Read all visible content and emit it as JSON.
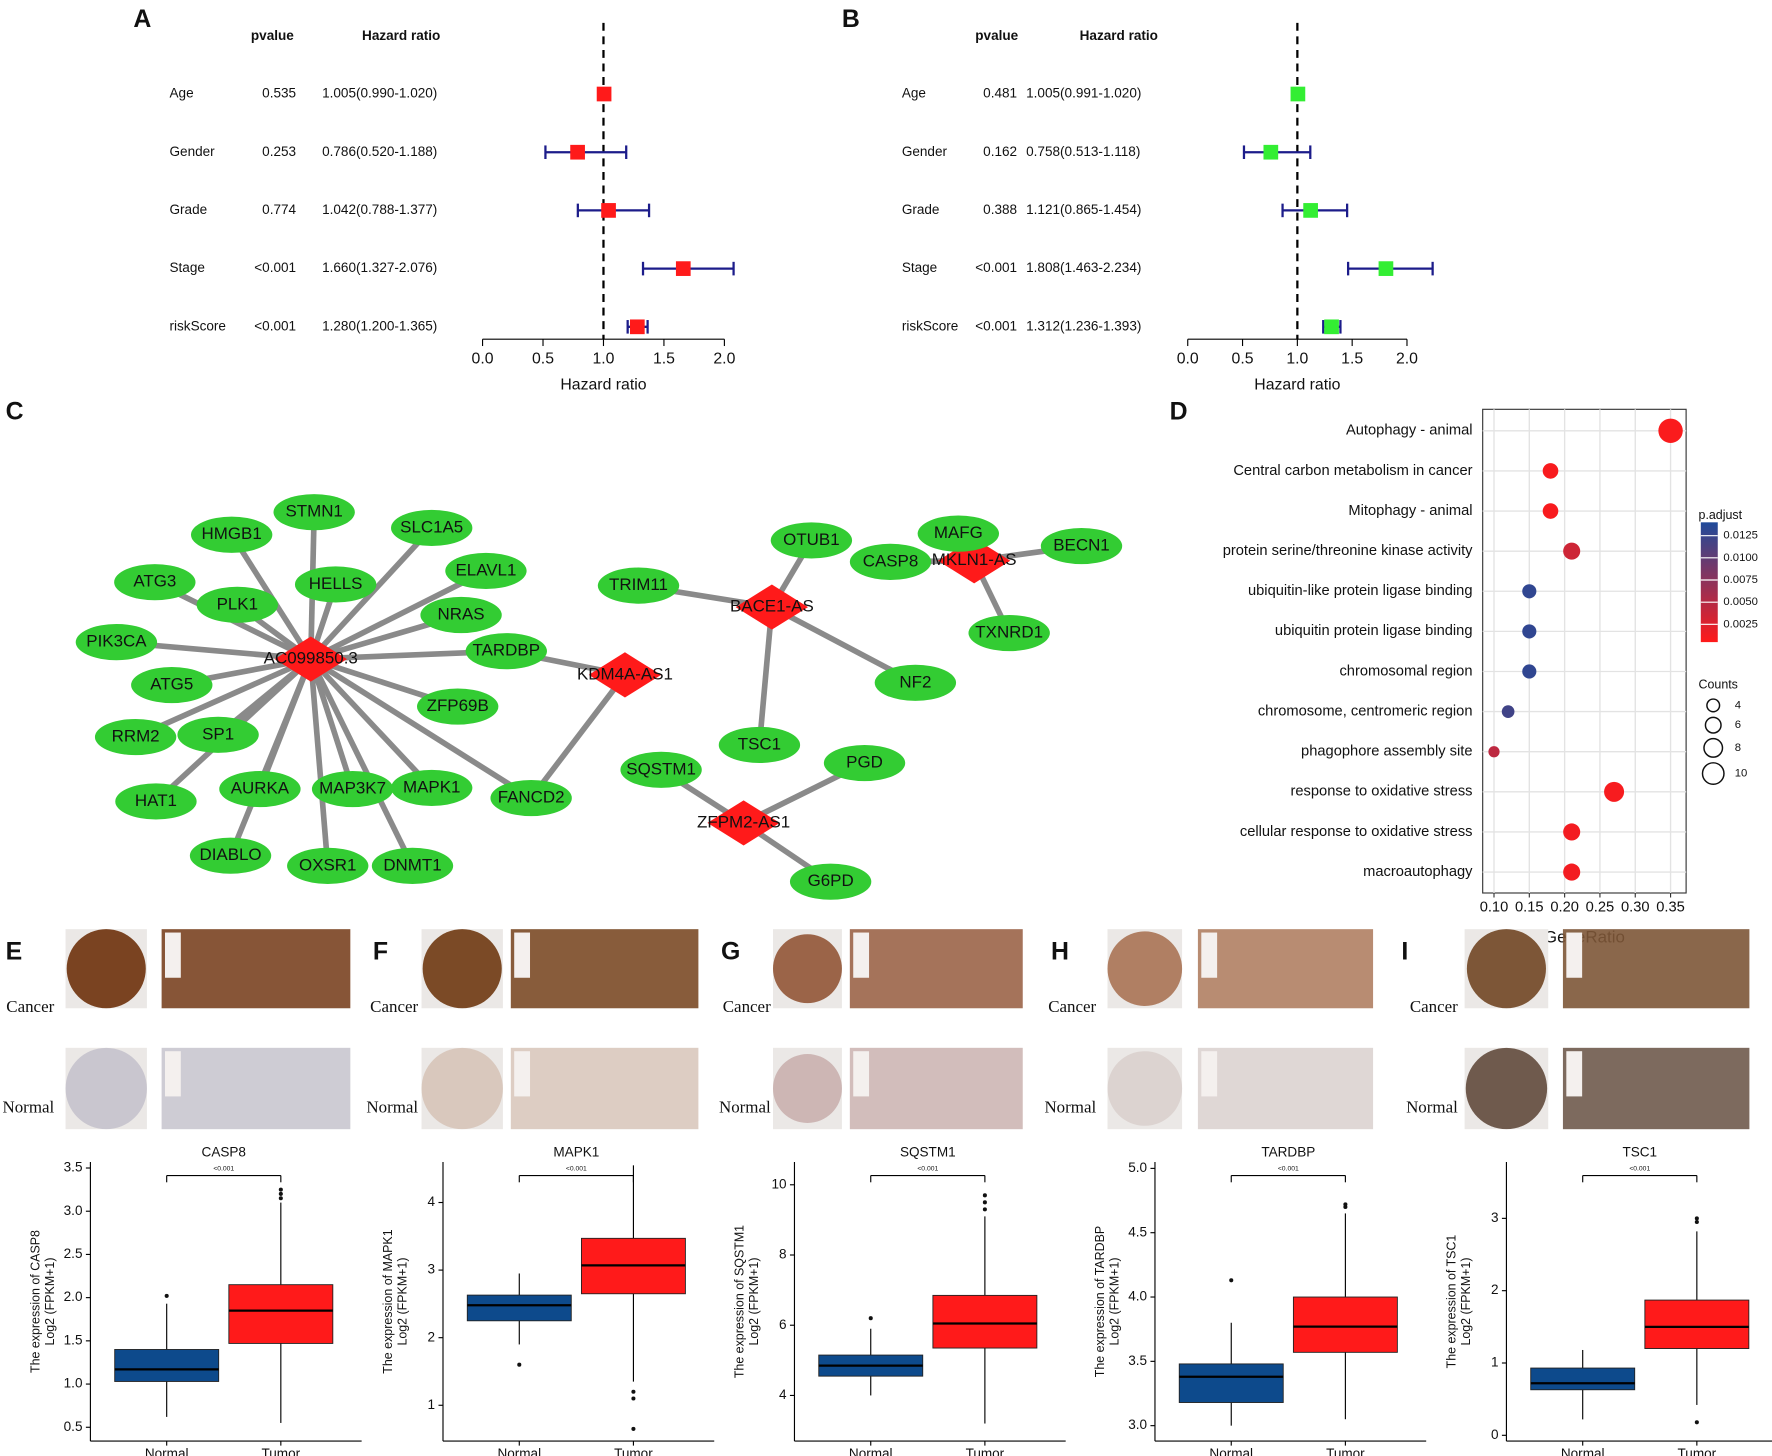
{
  "chart_data": [
    {
      "type": "forest",
      "panel": "A",
      "column_headers": [
        "pvalue",
        "Hazard ratio"
      ],
      "categories": [
        "Age",
        "Gender",
        "Grade",
        "Stage",
        "riskScore"
      ],
      "pvalue_labels": [
        "0.535",
        "0.253",
        "0.774",
        "<0.001",
        "<0.001"
      ],
      "hr_labels": [
        "1.005(0.990-1.020)",
        "0.786(0.520-1.188)",
        "1.042(0.788-1.377)",
        "1.660(1.327-2.076)",
        "1.280(1.200-1.365)"
      ],
      "values": [
        1.005,
        0.786,
        1.042,
        1.66,
        1.28
      ],
      "lower": [
        0.99,
        0.52,
        0.788,
        1.327,
        1.2
      ],
      "upper": [
        1.02,
        1.188,
        1.377,
        2.076,
        1.365
      ],
      "reference": 1,
      "xlim": [
        0,
        2
      ],
      "xticks": [
        {
          "value": 0,
          "label": "0.0"
        },
        0.5,
        {
          "value": 1,
          "label": "1.0"
        },
        1.5,
        {
          "value": 2,
          "label": "2.0"
        }
      ],
      "xlabel": "Hazard ratio",
      "color": "#ff1a1a",
      "ci_color": "#1c1c8a"
    },
    {
      "type": "forest",
      "panel": "B",
      "column_headers": [
        "pvalue",
        "Hazard ratio"
      ],
      "categories": [
        "Age",
        "Gender",
        "Grade",
        "Stage",
        "riskScore"
      ],
      "pvalue_labels": [
        "0.481",
        "0.162",
        "0.388",
        "<0.001",
        "<0.001"
      ],
      "hr_labels": [
        "1.005(0.991-1.020)",
        "0.758(0.513-1.118)",
        "1.121(0.865-1.454)",
        "1.808(1.463-2.234)",
        "1.312(1.236-1.393)"
      ],
      "values": [
        1.005,
        0.758,
        1.121,
        1.808,
        1.312
      ],
      "lower": [
        0.991,
        0.513,
        0.865,
        1.463,
        1.236
      ],
      "upper": [
        1.02,
        1.118,
        1.454,
        2.234,
        1.393
      ],
      "reference": 1,
      "xlim": [
        0,
        2
      ],
      "xticks": [
        {
          "value": 0,
          "label": "0.0"
        },
        0.5,
        {
          "value": 1,
          "label": "1.0"
        },
        1.5,
        {
          "value": 2,
          "label": "2.0"
        }
      ],
      "xlabel": "Hazard ratio",
      "color": "#33ee33",
      "ci_color": "#1c1c8a"
    },
    {
      "type": "dot",
      "panel": "D",
      "categories": [
        "Autophagy - animal",
        "Central carbon metabolism in cancer",
        "Mitophagy - animal",
        "protein serine/threonine kinase activity",
        "ubiquitin-like protein ligase binding",
        "ubiquitin protein ligase binding",
        "chromosomal region",
        "chromosome, centromeric region",
        "phagophore assembly site",
        "response to oxidative stress",
        "cellular response to oxidative stress",
        "macroautophagy"
      ],
      "values": [
        0.35,
        0.18,
        0.18,
        0.21,
        0.15,
        0.15,
        0.15,
        0.12,
        0.1,
        0.27,
        0.21,
        0.21
      ],
      "counts": [
        12,
        6,
        6,
        7,
        5,
        5,
        5,
        4,
        3,
        9,
        7,
        7
      ],
      "p_adjust": [
        0.0008,
        0.0009,
        0.0009,
        0.0035,
        0.013,
        0.013,
        0.013,
        0.012,
        0.0045,
        0.001,
        0.0012,
        0.0012
      ],
      "xlim": [
        0.084,
        0.372
      ],
      "xticks": [
        {
          "value": 0.1,
          "label": "0.10"
        },
        0.15,
        {
          "value": 0.2,
          "label": "0.20"
        },
        0.25,
        {
          "value": 0.3,
          "label": "0.30"
        },
        0.35
      ],
      "xlabel": "GeneRatio",
      "grid": true,
      "color_legend": {
        "title": "p.adjust",
        "lim": [
          0.0005,
          0.014
        ],
        "ticks": [
          0.0125,
          {
            "value": 0.01,
            "label": "0.0100"
          },
          0.0075,
          {
            "value": 0.005,
            "label": "0.0050"
          },
          0.0025
        ],
        "low_color": "#ff1a1a",
        "high_color": "#1f4a9a"
      },
      "size_legend": {
        "title": "Counts",
        "ticks": [
          4,
          6,
          8,
          10
        ]
      }
    },
    {
      "type": "box",
      "panel": "E",
      "title": "CASP8",
      "annotation": "<0.001",
      "row_labels": [
        "Cancer",
        "Normal"
      ],
      "ylabel": "The expression of CASP8",
      "ylabel_unit": "Log2 (FPKM+1)",
      "categories": [
        "Normal",
        "Tumor"
      ],
      "colors": [
        "#0d4a8c",
        "#ff1a1a"
      ],
      "min": [
        0.62,
        0.55
      ],
      "q1": [
        1.03,
        1.47
      ],
      "median": [
        1.17,
        1.85
      ],
      "q3": [
        1.4,
        2.15
      ],
      "max": [
        1.93,
        3.1
      ],
      "outliers": [
        [
          2.02
        ],
        [
          3.15,
          3.2,
          3.25
        ]
      ],
      "ylim": [
        0.34,
        3.57
      ],
      "yticks": [
        0.5,
        {
          "value": 1,
          "label": "1.0"
        },
        1.5,
        {
          "value": 2,
          "label": "2.0"
        },
        2.5,
        {
          "value": 3,
          "label": "3.0"
        },
        3.5
      ]
    },
    {
      "type": "box",
      "panel": "F",
      "title": "MAPK1",
      "annotation": "<0.001",
      "row_labels": [
        "Cancer",
        "Normal"
      ],
      "ylabel": "The expression of MAPK1",
      "ylabel_unit": "Log2 (FPKM+1)",
      "categories": [
        "Normal",
        "Tumor"
      ],
      "colors": [
        "#0d4a8c",
        "#ff1a1a"
      ],
      "min": [
        1.9,
        1.35
      ],
      "q1": [
        2.25,
        2.65
      ],
      "median": [
        2.48,
        3.07
      ],
      "q3": [
        2.63,
        3.47
      ],
      "max": [
        2.95,
        4.55
      ],
      "outliers": [
        [
          1.6
        ],
        [
          1.2,
          1.1,
          0.65
        ]
      ],
      "ylim": [
        0.47,
        4.6
      ],
      "yticks": [
        1,
        2,
        3,
        4
      ]
    },
    {
      "type": "box",
      "panel": "G",
      "title": "SQSTM1",
      "annotation": "<0.001",
      "row_labels": [
        "Cancer",
        "Normal"
      ],
      "ylabel": "The expression of SQSTM1",
      "ylabel_unit": "Log2 (FPKM+1)",
      "categories": [
        "Normal",
        "Tumor"
      ],
      "colors": [
        "#0d4a8c",
        "#ff1a1a"
      ],
      "min": [
        4.0,
        3.2
      ],
      "q1": [
        4.55,
        5.35
      ],
      "median": [
        4.85,
        6.05
      ],
      "q3": [
        5.15,
        6.85
      ],
      "max": [
        5.9,
        9.1
      ],
      "outliers": [
        [
          6.2
        ],
        [
          9.3,
          9.5,
          9.7
        ]
      ],
      "ylim": [
        2.7,
        10.65
      ],
      "yticks": [
        4,
        6,
        8,
        10
      ]
    },
    {
      "type": "box",
      "panel": "H",
      "title": "TARDBP",
      "annotation": "<0.001",
      "row_labels": [
        "Cancer",
        "Normal"
      ],
      "ylabel": "The expression of TARDBP",
      "ylabel_unit": "Log2 (FPKM+1)",
      "categories": [
        "Normal",
        "Tumor"
      ],
      "colors": [
        "#0d4a8c",
        "#ff1a1a"
      ],
      "min": [
        3.0,
        3.05
      ],
      "q1": [
        3.18,
        3.57
      ],
      "median": [
        3.38,
        3.77
      ],
      "q3": [
        3.48,
        4.0
      ],
      "max": [
        3.8,
        4.65
      ],
      "outliers": [
        [
          4.13
        ],
        [
          4.7,
          4.72
        ]
      ],
      "ylim": [
        2.88,
        5.05
      ],
      "yticks": [
        {
          "value": 3,
          "label": "3.0"
        },
        3.5,
        {
          "value": 4,
          "label": "4.0"
        },
        4.5,
        {
          "value": 5,
          "label": "5.0"
        }
      ]
    },
    {
      "type": "box",
      "panel": "I",
      "title": "TSC1",
      "annotation": "<0.001",
      "row_labels": [
        "Cancer",
        "Normal"
      ],
      "ylabel": "The expression of TSC1",
      "ylabel_unit": "Log2 (FPKM+1)",
      "categories": [
        "Normal",
        "Tumor"
      ],
      "colors": [
        "#0d4a8c",
        "#ff1a1a"
      ],
      "min": [
        0.22,
        0.42
      ],
      "q1": [
        0.63,
        1.2
      ],
      "median": [
        0.72,
        1.5
      ],
      "q3": [
        0.93,
        1.87
      ],
      "max": [
        1.18,
        2.82
      ],
      "outliers": [
        [],
        [
          2.95,
          3.0,
          0.18
        ]
      ],
      "ylim": [
        -0.08,
        3.78
      ],
      "yticks": [
        0,
        1,
        2,
        3
      ]
    }
  ],
  "network": {
    "panel": "C",
    "hub_color": "#ff1a1a",
    "node_color": "#33cc33",
    "edge_color": "#8a8a8a",
    "nodes": [
      {
        "label": "AC099850.3",
        "shape": "diamond"
      },
      {
        "label": "KDM4A-AS1",
        "shape": "diamond"
      },
      {
        "label": "BACE1-AS",
        "shape": "diamond"
      },
      {
        "label": "MKLN1-AS",
        "shape": "diamond"
      },
      {
        "label": "ZFPM2-AS1",
        "shape": "diamond"
      },
      {
        "label": "STMN1",
        "shape": "ellipse"
      },
      {
        "label": "HMGB1",
        "shape": "ellipse"
      },
      {
        "label": "SLC1A5",
        "shape": "ellipse"
      },
      {
        "label": "ATG3",
        "shape": "ellipse"
      },
      {
        "label": "HELLS",
        "shape": "ellipse"
      },
      {
        "label": "ELAVL1",
        "shape": "ellipse"
      },
      {
        "label": "PLK1",
        "shape": "ellipse"
      },
      {
        "label": "NRAS",
        "shape": "ellipse"
      },
      {
        "label": "PIK3CA",
        "shape": "ellipse"
      },
      {
        "label": "TARDBP",
        "shape": "ellipse"
      },
      {
        "label": "ATG5",
        "shape": "ellipse"
      },
      {
        "label": "ZFP69B",
        "shape": "ellipse"
      },
      {
        "label": "RRM2",
        "shape": "ellipse"
      },
      {
        "label": "SP1",
        "shape": "ellipse"
      },
      {
        "label": "HAT1",
        "shape": "ellipse"
      },
      {
        "label": "AURKA",
        "shape": "ellipse"
      },
      {
        "label": "MAP3K7",
        "shape": "ellipse"
      },
      {
        "label": "MAPK1",
        "shape": "ellipse"
      },
      {
        "label": "FANCD2",
        "shape": "ellipse"
      },
      {
        "label": "DIABLO",
        "shape": "ellipse"
      },
      {
        "label": "OXSR1",
        "shape": "ellipse"
      },
      {
        "label": "DNMT1",
        "shape": "ellipse"
      },
      {
        "label": "OTUB1",
        "shape": "ellipse"
      },
      {
        "label": "TRIM11",
        "shape": "ellipse"
      },
      {
        "label": "NF2",
        "shape": "ellipse"
      },
      {
        "label": "TSC1",
        "shape": "ellipse"
      },
      {
        "label": "CASP8",
        "shape": "ellipse"
      },
      {
        "label": "MAFG",
        "shape": "ellipse"
      },
      {
        "label": "BECN1",
        "shape": "ellipse"
      },
      {
        "label": "TXNRD1",
        "shape": "ellipse"
      },
      {
        "label": "SQSTM1",
        "shape": "ellipse"
      },
      {
        "label": "PGD",
        "shape": "ellipse"
      },
      {
        "label": "G6PD",
        "shape": "ellipse"
      }
    ],
    "edges": [
      [
        0,
        5
      ],
      [
        0,
        6
      ],
      [
        0,
        7
      ],
      [
        0,
        8
      ],
      [
        0,
        9
      ],
      [
        0,
        10
      ],
      [
        0,
        11
      ],
      [
        0,
        12
      ],
      [
        0,
        13
      ],
      [
        0,
        14
      ],
      [
        0,
        15
      ],
      [
        0,
        16
      ],
      [
        0,
        17
      ],
      [
        0,
        18
      ],
      [
        0,
        19
      ],
      [
        0,
        20
      ],
      [
        0,
        21
      ],
      [
        0,
        22
      ],
      [
        0,
        23
      ],
      [
        0,
        24
      ],
      [
        0,
        25
      ],
      [
        0,
        26
      ],
      [
        1,
        14
      ],
      [
        1,
        23
      ],
      [
        2,
        27
      ],
      [
        2,
        28
      ],
      [
        2,
        29
      ],
      [
        2,
        30
      ],
      [
        3,
        31
      ],
      [
        3,
        32
      ],
      [
        3,
        33
      ],
      [
        3,
        34
      ],
      [
        4,
        35
      ],
      [
        4,
        36
      ],
      [
        4,
        37
      ]
    ]
  }
}
